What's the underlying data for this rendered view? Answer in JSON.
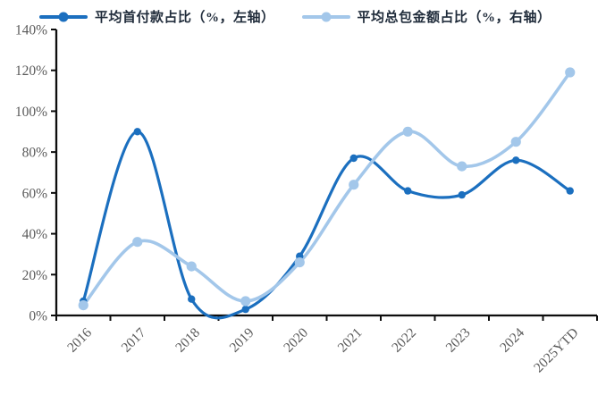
{
  "colors": {
    "series1": "#1B6FBF",
    "series2": "#A3C7EA",
    "axis": "#0d0d0d",
    "tick_label": "#595959",
    "legend_text": "#1F2B3A",
    "background": "#ffffff"
  },
  "chart_data": {
    "type": "line",
    "title": "",
    "smooth": true,
    "grid": false,
    "legend_position": "top",
    "categories": [
      "2016",
      "2017",
      "2018",
      "2019",
      "2020",
      "2021",
      "2022",
      "2023",
      "2024",
      "2025YTD"
    ],
    "series": [
      {
        "name": "平均首付款占比（%，左轴）",
        "axis": "left",
        "color": "#1B6FBF",
        "marker_radius": 4.2,
        "line_width": 3.2,
        "values": [
          7,
          90,
          8,
          3,
          29,
          77,
          61,
          59,
          76,
          61
        ]
      },
      {
        "name": "平均总包金额占比（%，右轴）",
        "axis": "right",
        "color": "#A3C7EA",
        "marker_radius": 5.6,
        "line_width": 3.6,
        "values": [
          5,
          36,
          24,
          7,
          26,
          64,
          90,
          73,
          85,
          119
        ]
      }
    ],
    "ylim": [
      0,
      140
    ],
    "y_tick_step": 20,
    "y_tick_labels": [
      "0%",
      "20%",
      "40%",
      "60%",
      "80%",
      "100%",
      "120%",
      "140%"
    ],
    "xlabel": "",
    "ylabel": ""
  }
}
